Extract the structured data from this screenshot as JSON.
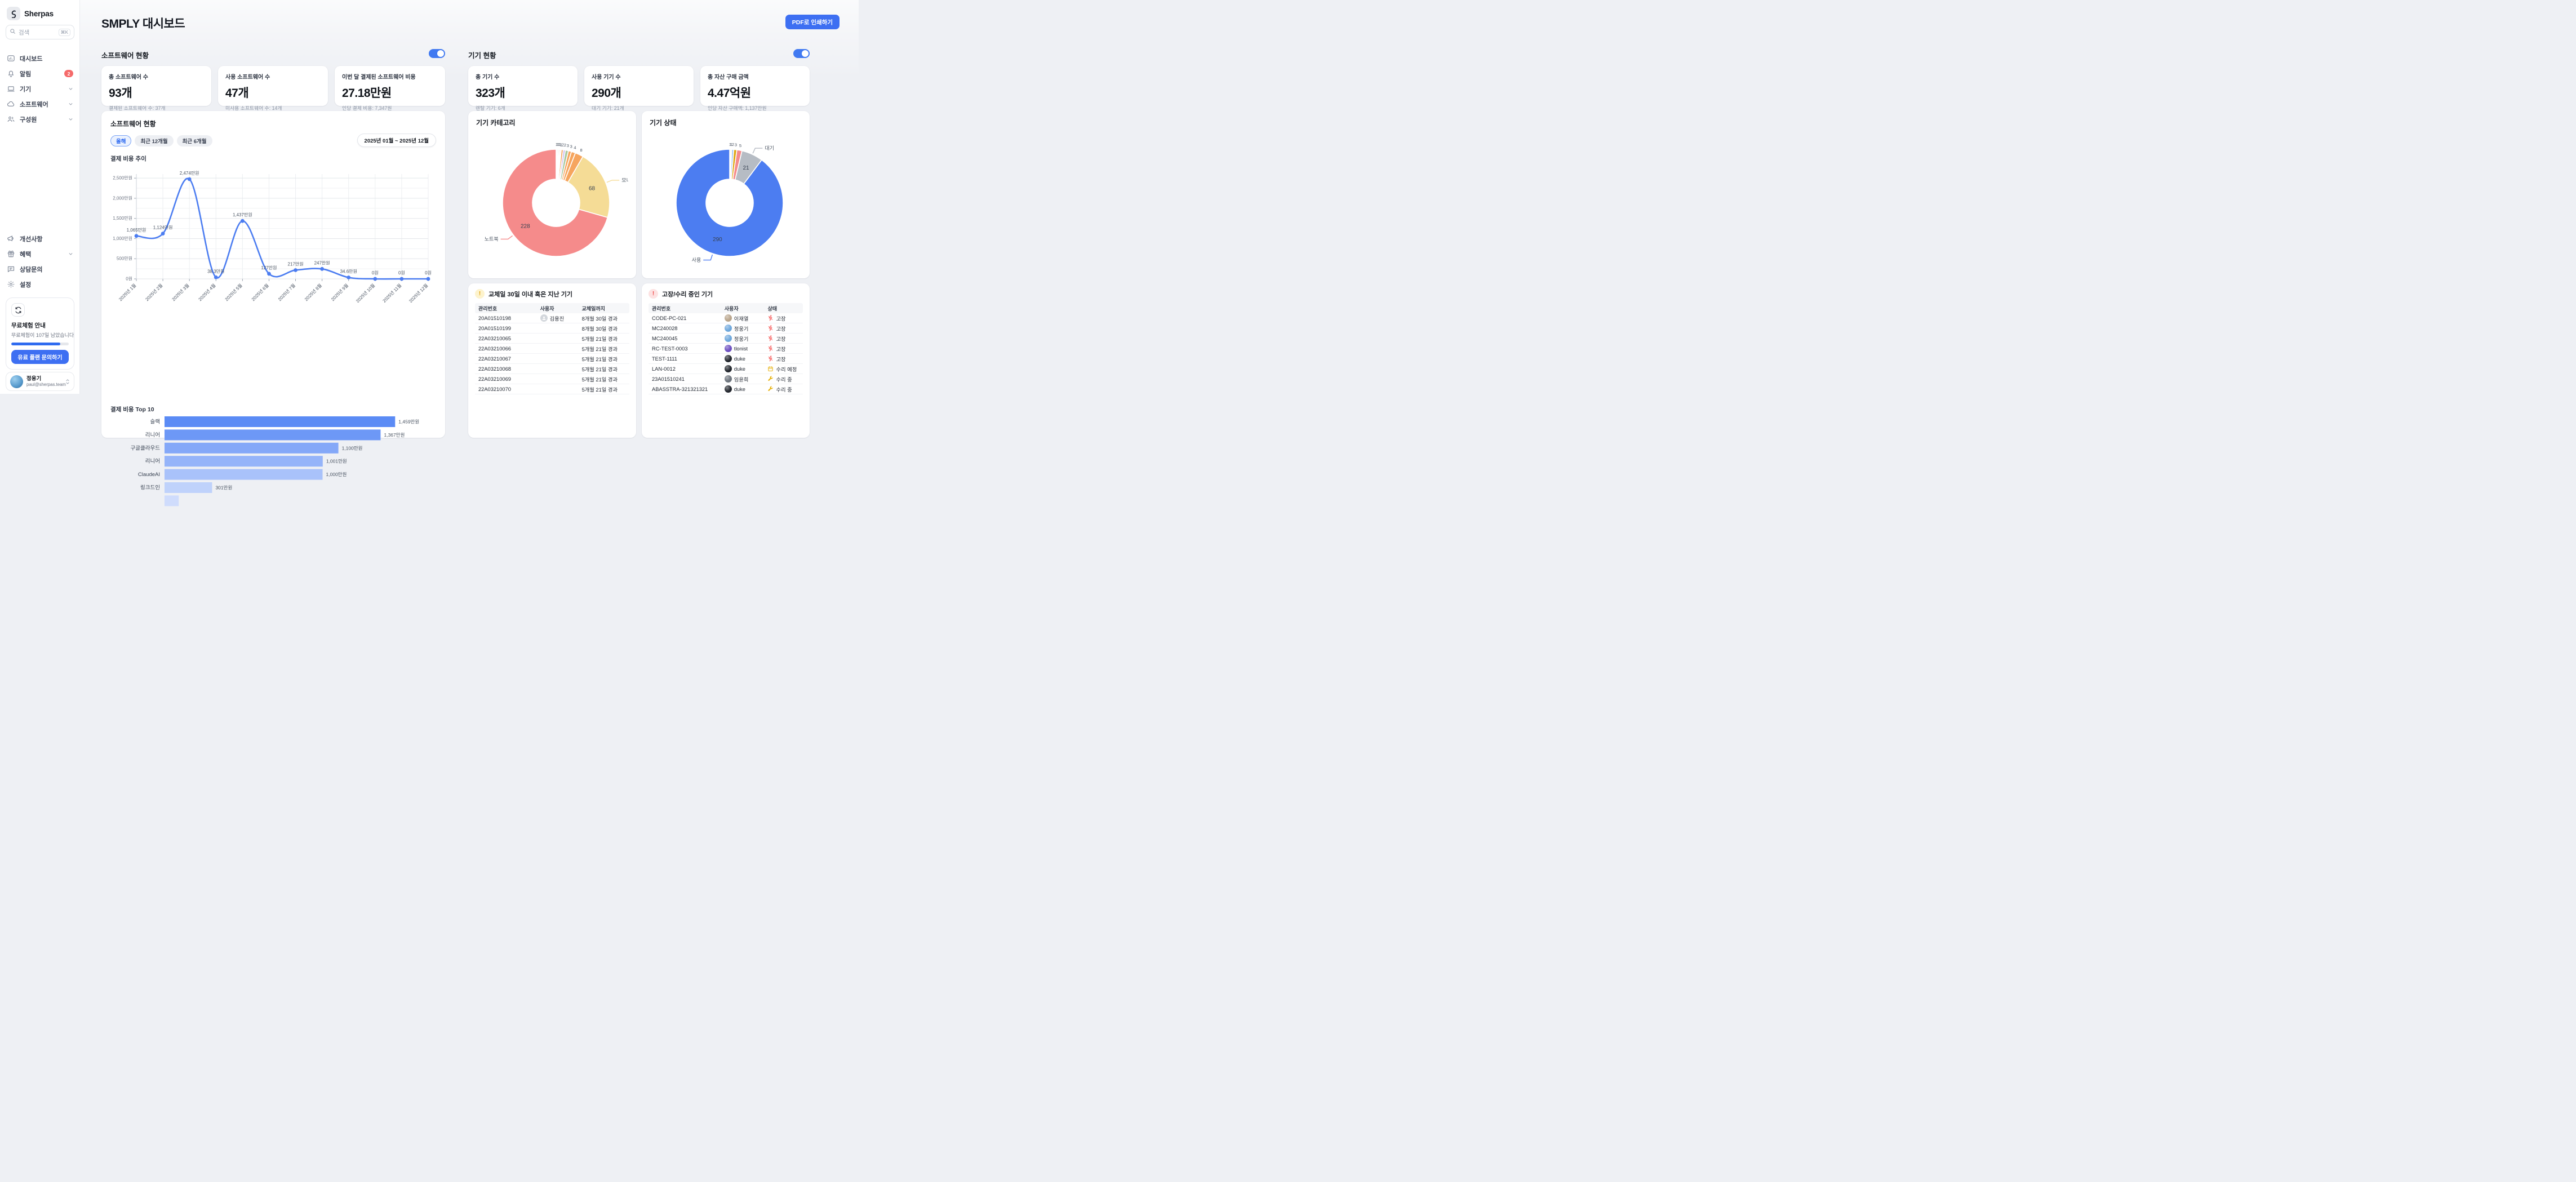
{
  "sidebar": {
    "brand": "Sherpas",
    "search": {
      "placeholder": "검색",
      "shortcut": "⌘K"
    },
    "menu": [
      {
        "label": "대시보드",
        "icon": "dashboard-icon"
      },
      {
        "label": "알림",
        "icon": "bell-icon",
        "badge": "2"
      },
      {
        "label": "기기",
        "icon": "laptop-icon",
        "chevron": true
      },
      {
        "label": "소프트웨어",
        "icon": "cloud-icon",
        "chevron": true
      },
      {
        "label": "구성원",
        "icon": "people-icon",
        "chevron": true
      }
    ],
    "secondary": [
      {
        "label": "개선사항",
        "icon": "megaphone-icon"
      },
      {
        "label": "혜택",
        "icon": "gift-icon",
        "chevron": true
      },
      {
        "label": "상담문의",
        "icon": "chat-icon"
      },
      {
        "label": "설정",
        "icon": "gear-icon"
      }
    ],
    "trial": {
      "title": "무료체험 안내",
      "desc": "무료체험이 107일 남았습니다",
      "progress_pct": 85,
      "cta": "유료 플랜 문의하기"
    },
    "profile": {
      "name": "정웅기",
      "email": "paul@sherpas.team"
    }
  },
  "header": {
    "title": "SMPLY 대시보드",
    "pdf_button": "PDF로 인쇄하기"
  },
  "software_section": {
    "title": "소프트웨어 현황",
    "toggle_on": true,
    "cards": [
      {
        "label": "총 소프트웨어 수",
        "value": "93개",
        "sub": "결제된 소프트웨어 수: 37개"
      },
      {
        "label": "사용 소프트웨어 수",
        "value": "47개",
        "sub": "미사용 소프트웨어 수: 14개"
      },
      {
        "label": "이번 달 결제된 소프트웨어 비용",
        "value": "27.18만원",
        "sub": "인당 결제 비용: 7,347원"
      }
    ],
    "chart_card": {
      "title": "소프트웨어 현황",
      "tabs": [
        "올해",
        "최근 12개월",
        "최근 6개월"
      ],
      "active_tab": "올해",
      "date_range": "2025년 01월 ~ 2025년 12월",
      "line_title": "결제 비용 추이",
      "bar_title": "결제 비용 Top 10"
    }
  },
  "device_section": {
    "title": "기기 현황",
    "toggle_on": true,
    "cards": [
      {
        "label": "총 기기 수",
        "value": "323개",
        "sub": "렌탈 기기: 6개"
      },
      {
        "label": "사용 기기 수",
        "value": "290개",
        "sub": "대기 기기: 21개"
      },
      {
        "label": "총 자산 구매 금액",
        "value": "4.47억원",
        "sub": "인당 자산 구매액: 1,137만원"
      }
    ],
    "category_card_title": "기기 카테고리",
    "status_card_title": "기기 상태"
  },
  "chart_data": [
    {
      "type": "line",
      "title": "결제 비용 추이",
      "x": [
        "2025년 1월",
        "2025년 2월",
        "2025년 3월",
        "2025년 4월",
        "2025년 5월",
        "2025년 6월",
        "2025년 7월",
        "2025년 8월",
        "2025년 9월",
        "2025년 10월",
        "2025년 11월",
        "2025년 12월"
      ],
      "values": [
        1065,
        1124,
        2474,
        38.3,
        1437,
        127,
        217,
        247,
        34.6,
        0,
        0,
        0
      ],
      "point_labels": [
        "1,065만원",
        "1,124만원",
        "2,474만원",
        "38.3만원",
        "1,437만원",
        "127만원",
        "217만원",
        "247만원",
        "34.6만원",
        "0원",
        "0원",
        "0원"
      ],
      "y_ticks": [
        0,
        500,
        1000,
        1500,
        2000,
        2500
      ],
      "y_tick_labels": [
        "0원",
        "500만원",
        "1,000만원",
        "1,500만원",
        "2,000만원",
        "2,500만원"
      ],
      "ylim": [
        0,
        2600
      ],
      "grid": true,
      "color": "#4c7df1"
    },
    {
      "type": "bar",
      "title": "결제 비용 Top 10",
      "orientation": "horizontal",
      "categories": [
        "슬랙",
        "리니어",
        "구글클라우드",
        "리니어",
        "ClaudeAI",
        "링크드인",
        ""
      ],
      "values": [
        1459,
        1367,
        1100,
        1001,
        1000,
        301,
        90
      ],
      "value_labels": [
        "1,459만원",
        "1,367만원",
        "1,100만원",
        "1,001만원",
        "1,000만원",
        "301만원",
        ""
      ],
      "colors": [
        "#5b8bf5",
        "#6d98f6",
        "#84a8f8",
        "#95b4f9",
        "#a9c2fa",
        "#bfd2fb",
        "#cfdcfc"
      ],
      "xlim": [
        0,
        1490
      ]
    },
    {
      "type": "pie",
      "title": "기기 카테고리",
      "total": 323,
      "slices": [
        {
          "value": 1,
          "color": "#c9b8f0"
        },
        {
          "value": 1,
          "color": "#a9c99f"
        },
        {
          "value": 1,
          "color": "#a9c99f"
        },
        {
          "value": 1,
          "color": "#f58b8b"
        },
        {
          "value": 1,
          "color": "#f6a55e"
        },
        {
          "value": 2,
          "color": "#f6a55e"
        },
        {
          "value": 2,
          "color": "#c9b8f0"
        },
        {
          "value": 3,
          "color": "#a9c99f"
        },
        {
          "value": 3,
          "color": "#f6a55e"
        },
        {
          "value": 4,
          "color": "#f6a55e"
        },
        {
          "value": 8,
          "color": "#f6a55e"
        },
        {
          "value": 68,
          "color": "#f5dc96",
          "label": "모니터",
          "callout": "right"
        },
        {
          "value": 228,
          "color": "#f58b8b",
          "label": "노트북",
          "callout": "left"
        }
      ]
    },
    {
      "type": "pie",
      "title": "기기 상태",
      "total": 323,
      "slices": [
        {
          "value": 1,
          "color": "#6b7280"
        },
        {
          "value": 1,
          "color": "#f5d73e"
        },
        {
          "value": 2,
          "color": "#9cc3f7"
        },
        {
          "value": 3,
          "color": "#dfa712"
        },
        {
          "value": 5,
          "color": "#f58b8b"
        },
        {
          "value": 21,
          "color": "#b6bcc4",
          "label": "대기",
          "callout": "right"
        },
        {
          "value": 290,
          "color": "#4c7df1",
          "label": "사용",
          "callout": "left"
        }
      ]
    }
  ],
  "tables": {
    "replace": {
      "title": "교체일 30일 이내 혹은 지난 기기",
      "columns": [
        "관리번호",
        "사용자",
        "교체일까지"
      ],
      "rows": [
        {
          "id": "20A01510198",
          "user": "김용진",
          "due": "8개월 30일 경과"
        },
        {
          "id": "20A01510199",
          "user": "",
          "due": "8개월 30일 경과"
        },
        {
          "id": "22A03210065",
          "user": "",
          "due": "5개월 21일 경과"
        },
        {
          "id": "22A03210066",
          "user": "",
          "due": "5개월 21일 경과"
        },
        {
          "id": "22A03210067",
          "user": "",
          "due": "5개월 21일 경과"
        },
        {
          "id": "22A03210068",
          "user": "",
          "due": "5개월 21일 경과"
        },
        {
          "id": "22A03210069",
          "user": "",
          "due": "5개월 21일 경과"
        },
        {
          "id": "22A03210070",
          "user": "",
          "due": "5개월 21일 경과"
        }
      ]
    },
    "repair": {
      "title": "고장/수리 중인 기기",
      "columns": [
        "관리번호",
        "사용자",
        "상태"
      ],
      "rows": [
        {
          "id": "CODE-PC-021",
          "user": "이재열",
          "status": "고장",
          "status_type": "fault"
        },
        {
          "id": "MC240028",
          "user": "정웅기",
          "status": "고장",
          "status_type": "fault"
        },
        {
          "id": "MC240045",
          "user": "정웅기",
          "status": "고장",
          "status_type": "fault"
        },
        {
          "id": "RC-TEST-0003",
          "user": "tlonist",
          "status": "고장",
          "status_type": "fault"
        },
        {
          "id": "TEST-1111",
          "user": "duke",
          "status": "고장",
          "status_type": "fault"
        },
        {
          "id": "LAN-0012",
          "user": "duke",
          "status": "수리 예정",
          "status_type": "scheduled"
        },
        {
          "id": "23A01510241",
          "user": "임윤희",
          "status": "수리 중",
          "status_type": "repairing"
        },
        {
          "id": "ABASSTRA-321321321",
          "user": "duke",
          "status": "수리 중",
          "status_type": "repairing"
        }
      ]
    }
  },
  "avatar_colors": {
    "김용진": "#d3d7dc",
    "이재열": "#b9a58c",
    "정웅기": "#6ea7dc",
    "tlonist": "#6d4fc1",
    "duke": "#23272e",
    "임윤희": "#6d747d"
  },
  "status_colors": {
    "fault": "#f87171",
    "scheduled": "#e7b416",
    "repairing": "#e7b416"
  }
}
